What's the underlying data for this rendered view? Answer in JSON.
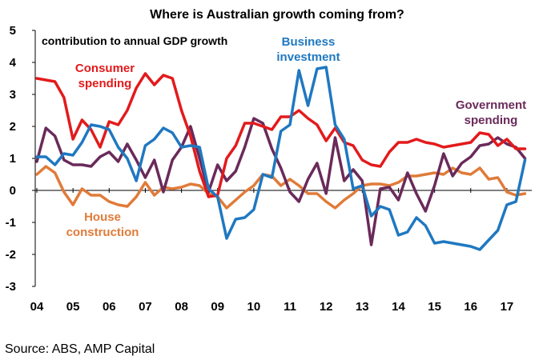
{
  "chart_data": {
    "type": "line",
    "title": "Where is Australian growth coming from?",
    "subtitle": "contribution to annual GDP growth",
    "ylim": [
      -3,
      5
    ],
    "yticks": [
      "5",
      "4",
      "3",
      "2",
      "1",
      "0",
      "-1",
      "-2",
      "-3"
    ],
    "xlim": [
      2004,
      2017.6
    ],
    "xticks": [
      "04",
      "05",
      "06",
      "07",
      "08",
      "09",
      "10",
      "11",
      "12",
      "13",
      "14",
      "15",
      "16",
      "17"
    ],
    "grid": false,
    "source": "Source: ABS, AMP Capital",
    "colors": {
      "consumer": "#e31a1c",
      "business": "#1f78c1",
      "government": "#6a2a5a",
      "house": "#e07b39"
    },
    "series": [
      {
        "key": "consumer",
        "label_lines": [
          "Consumer",
          "spending"
        ],
        "x": [
          2004.0,
          2004.25,
          2004.5,
          2004.75,
          2005.0,
          2005.25,
          2005.5,
          2005.75,
          2006.0,
          2006.25,
          2006.5,
          2006.75,
          2007.0,
          2007.25,
          2007.5,
          2007.75,
          2008.0,
          2008.25,
          2008.5,
          2008.75,
          2009.0,
          2009.25,
          2009.5,
          2009.75,
          2010.0,
          2010.25,
          2010.5,
          2010.75,
          2011.0,
          2011.25,
          2011.5,
          2011.75,
          2012.0,
          2012.25,
          2012.5,
          2012.75,
          2013.0,
          2013.25,
          2013.5,
          2013.75,
          2014.0,
          2014.25,
          2014.5,
          2014.75,
          2015.0,
          2015.25,
          2015.5,
          2015.75,
          2016.0,
          2016.25,
          2016.5,
          2016.75,
          2017.0,
          2017.25,
          2017.5
        ],
        "values": [
          3.5,
          3.45,
          3.4,
          2.9,
          1.6,
          2.2,
          1.9,
          1.35,
          2.15,
          2.05,
          2.5,
          3.2,
          3.65,
          3.3,
          3.6,
          3.5,
          2.5,
          1.7,
          0.6,
          -0.2,
          -0.15,
          1.0,
          1.4,
          2.1,
          2.1,
          2.0,
          1.9,
          2.3,
          2.3,
          2.5,
          2.25,
          2.05,
          1.55,
          1.95,
          1.5,
          1.4,
          0.95,
          0.8,
          0.75,
          1.2,
          1.5,
          1.5,
          1.6,
          1.5,
          1.45,
          1.35,
          1.4,
          1.45,
          1.5,
          1.8,
          1.75,
          1.4,
          1.6,
          1.3,
          1.3
        ]
      },
      {
        "key": "business",
        "label_lines": [
          "Business",
          "investment"
        ],
        "x": [
          2004.0,
          2004.25,
          2004.5,
          2004.75,
          2005.0,
          2005.25,
          2005.5,
          2005.75,
          2006.0,
          2006.25,
          2006.5,
          2006.75,
          2007.0,
          2007.25,
          2007.5,
          2007.75,
          2008.0,
          2008.25,
          2008.5,
          2008.75,
          2009.0,
          2009.25,
          2009.5,
          2009.75,
          2010.0,
          2010.25,
          2010.5,
          2010.75,
          2011.0,
          2011.25,
          2011.5,
          2011.75,
          2012.0,
          2012.25,
          2012.5,
          2012.75,
          2013.0,
          2013.25,
          2013.5,
          2013.75,
          2014.0,
          2014.25,
          2014.5,
          2014.75,
          2015.0,
          2015.25,
          2015.5,
          2015.75,
          2016.0,
          2016.25,
          2016.5,
          2016.75,
          2017.0,
          2017.25,
          2017.5
        ],
        "values": [
          1.05,
          1.05,
          0.8,
          1.15,
          1.1,
          1.5,
          2.05,
          2.0,
          1.9,
          1.35,
          1.0,
          0.3,
          1.4,
          1.6,
          1.95,
          1.8,
          1.35,
          1.4,
          1.35,
          0.05,
          -0.2,
          -1.5,
          -0.9,
          -0.85,
          -0.6,
          0.5,
          0.4,
          1.85,
          2.05,
          3.75,
          2.65,
          3.8,
          3.85,
          2.05,
          1.6,
          0.05,
          0.15,
          -0.8,
          -0.5,
          -0.6,
          -1.4,
          -1.3,
          -0.85,
          -1.1,
          -1.65,
          -1.6,
          -1.65,
          -1.7,
          -1.75,
          -1.85,
          -1.55,
          -1.25,
          -0.45,
          -0.35,
          0.95
        ]
      },
      {
        "key": "government",
        "label_lines": [
          "Government",
          "spending"
        ],
        "x": [
          2004.0,
          2004.25,
          2004.5,
          2004.75,
          2005.0,
          2005.25,
          2005.5,
          2005.75,
          2006.0,
          2006.25,
          2006.5,
          2006.75,
          2007.0,
          2007.25,
          2007.5,
          2007.75,
          2008.0,
          2008.25,
          2008.5,
          2008.75,
          2009.0,
          2009.25,
          2009.5,
          2009.75,
          2010.0,
          2010.25,
          2010.5,
          2010.75,
          2011.0,
          2011.25,
          2011.5,
          2011.75,
          2012.0,
          2012.25,
          2012.5,
          2012.75,
          2013.0,
          2013.25,
          2013.5,
          2013.75,
          2014.0,
          2014.25,
          2014.5,
          2014.75,
          2015.0,
          2015.25,
          2015.5,
          2015.75,
          2016.0,
          2016.25,
          2016.5,
          2016.75,
          2017.0,
          2017.25,
          2017.5
        ],
        "values": [
          0.9,
          1.95,
          1.7,
          0.95,
          0.8,
          0.8,
          0.75,
          1.05,
          1.2,
          0.9,
          1.45,
          0.95,
          0.4,
          0.95,
          -0.05,
          0.95,
          1.35,
          2.0,
          1.0,
          -0.05,
          0.8,
          0.3,
          0.6,
          1.35,
          2.25,
          2.1,
          1.3,
          0.7,
          -0.05,
          -0.35,
          0.35,
          0.85,
          -0.1,
          1.65,
          0.3,
          0.65,
          0.3,
          -1.7,
          0.05,
          0.1,
          -0.3,
          0.55,
          -0.1,
          -0.65,
          0.15,
          1.15,
          0.45,
          0.85,
          1.05,
          1.4,
          1.45,
          1.65,
          1.45,
          1.35,
          1.0
        ]
      },
      {
        "key": "house",
        "label_lines": [
          "House",
          "construction"
        ],
        "x": [
          2004.0,
          2004.25,
          2004.5,
          2004.75,
          2005.0,
          2005.25,
          2005.5,
          2005.75,
          2006.0,
          2006.25,
          2006.5,
          2006.75,
          2007.0,
          2007.25,
          2007.5,
          2007.75,
          2008.0,
          2008.25,
          2008.5,
          2008.75,
          2009.0,
          2009.25,
          2009.5,
          2009.75,
          2010.0,
          2010.25,
          2010.5,
          2010.75,
          2011.0,
          2011.25,
          2011.5,
          2011.75,
          2012.0,
          2012.25,
          2012.5,
          2012.75,
          2013.0,
          2013.25,
          2013.5,
          2013.75,
          2014.0,
          2014.25,
          2014.5,
          2014.75,
          2015.0,
          2015.25,
          2015.5,
          2015.75,
          2016.0,
          2016.25,
          2016.5,
          2016.75,
          2017.0,
          2017.25,
          2017.5
        ],
        "values": [
          0.5,
          0.75,
          0.55,
          -0.05,
          -0.45,
          0.05,
          -0.15,
          -0.15,
          -0.35,
          -0.45,
          -0.5,
          -0.2,
          0.25,
          -0.15,
          0.1,
          0.05,
          0.1,
          0.2,
          0.15,
          -0.1,
          -0.2,
          -0.55,
          -0.3,
          -0.05,
          0.15,
          0.5,
          0.45,
          0.15,
          0.35,
          0.15,
          -0.1,
          -0.1,
          -0.35,
          -0.55,
          -0.3,
          -0.1,
          0.15,
          0.2,
          0.2,
          0.15,
          0.25,
          0.45,
          0.45,
          0.5,
          0.55,
          0.5,
          0.7,
          0.55,
          0.5,
          0.7,
          0.35,
          0.4,
          -0.05,
          -0.15,
          -0.1
        ]
      }
    ]
  }
}
